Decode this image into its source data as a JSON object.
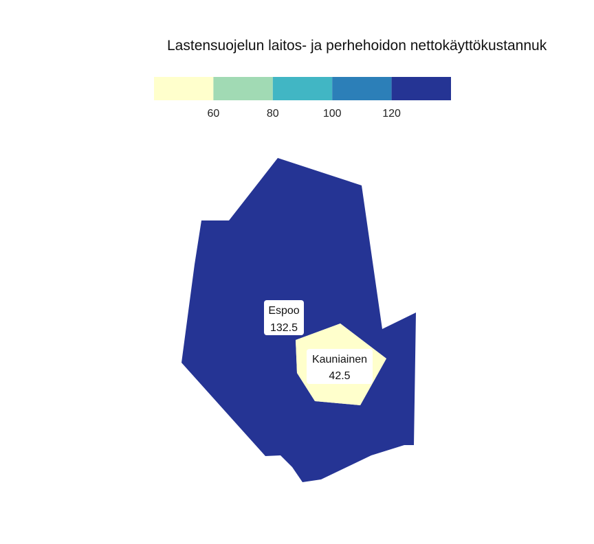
{
  "title": "Lastensuojelun laitos- ja perhehoidon nettokäyttökustannuk",
  "legend": {
    "bins": [
      {
        "color": "#ffffcc",
        "upper": 60
      },
      {
        "color": "#a1dab4",
        "upper": 80
      },
      {
        "color": "#41b6c4",
        "upper": 100
      },
      {
        "color": "#2c7fb8",
        "upper": 120
      },
      {
        "color": "#253494",
        "upper": null
      }
    ],
    "tick_labels": [
      "60",
      "80",
      "100",
      "120"
    ]
  },
  "regions": [
    {
      "name": "Espoo",
      "value": "132.5",
      "color": "#253494"
    },
    {
      "name": "Kauniainen",
      "value": "42.5",
      "color": "#ffffcc"
    }
  ]
}
